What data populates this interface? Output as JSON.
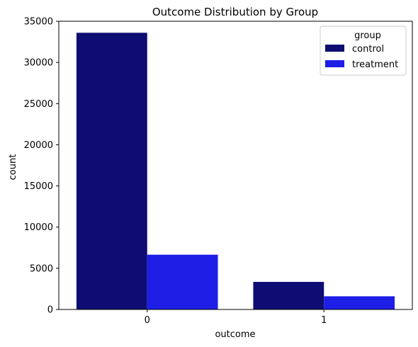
{
  "chart_data": {
    "type": "bar",
    "title": "Outcome Distribution by Group",
    "xlabel": "outcome",
    "ylabel": "count",
    "categories": [
      "0",
      "1"
    ],
    "series": [
      {
        "name": "control",
        "color": "#0d0d73",
        "values": [
          33600,
          3350
        ]
      },
      {
        "name": "treatment",
        "color": "#1e1ee6",
        "values": [
          6650,
          1600
        ]
      }
    ],
    "ylim": [
      0,
      35000
    ],
    "yticks": [
      0,
      5000,
      10000,
      15000,
      20000,
      25000,
      30000,
      35000
    ],
    "grid": false,
    "legend": {
      "title": "group",
      "placement": "top-right"
    }
  }
}
